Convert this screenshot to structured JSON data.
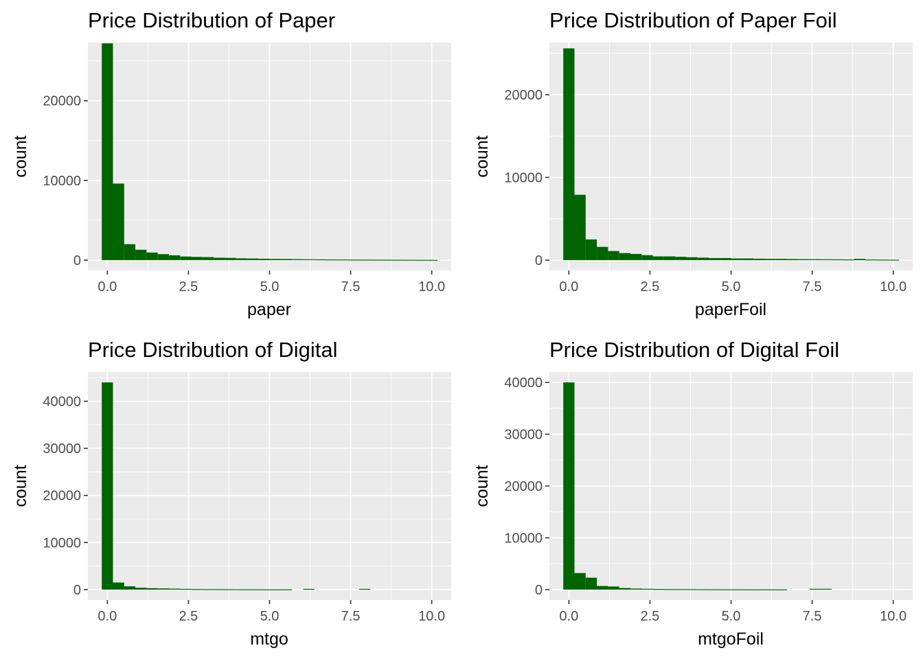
{
  "chart_data": [
    {
      "type": "bar",
      "title": "Price Distribution of Paper",
      "xlabel": "paper",
      "ylabel": "count",
      "xlim": [
        -0.6,
        10.6
      ],
      "ylim": [
        -1300,
        27300
      ],
      "xticks": [
        0.0,
        2.5,
        5.0,
        7.5,
        10.0
      ],
      "xtick_labels": [
        "0.0",
        "2.5",
        "5.0",
        "7.5",
        "10.0"
      ],
      "yticks": [
        0,
        10000,
        20000
      ],
      "ytick_labels": [
        "0",
        "10000",
        "20000"
      ],
      "bin_width": 0.345,
      "bin_centers": [
        0.0,
        0.345,
        0.69,
        1.035,
        1.38,
        1.725,
        2.07,
        2.415,
        2.76,
        3.105,
        3.45,
        3.795,
        4.14,
        4.485,
        4.83,
        5.175,
        5.52,
        5.865,
        6.21,
        6.555,
        6.9,
        7.245,
        7.59,
        7.935,
        8.28,
        8.625,
        8.97,
        9.315,
        9.66,
        10.005
      ],
      "values": [
        27200,
        9600,
        2000,
        1300,
        950,
        750,
        600,
        450,
        400,
        380,
        300,
        280,
        220,
        200,
        170,
        150,
        140,
        120,
        100,
        90,
        80,
        70,
        60,
        55,
        50,
        45,
        40,
        35,
        30,
        25
      ],
      "fill": "#006400",
      "grid": true
    },
    {
      "type": "bar",
      "title": "Price Distribution of Paper Foil",
      "xlabel": "paperFoil",
      "ylabel": "count",
      "xlim": [
        -0.6,
        10.6
      ],
      "ylim": [
        -1250,
        26300
      ],
      "xticks": [
        0.0,
        2.5,
        5.0,
        7.5,
        10.0
      ],
      "xtick_labels": [
        "0.0",
        "2.5",
        "5.0",
        "7.5",
        "10.0"
      ],
      "yticks": [
        0,
        10000,
        20000
      ],
      "ytick_labels": [
        "0",
        "10000",
        "20000"
      ],
      "bin_width": 0.345,
      "bin_centers": [
        0.0,
        0.345,
        0.69,
        1.035,
        1.38,
        1.725,
        2.07,
        2.415,
        2.76,
        3.105,
        3.45,
        3.795,
        4.14,
        4.485,
        4.83,
        5.175,
        5.52,
        5.865,
        6.21,
        6.555,
        6.9,
        7.245,
        7.59,
        7.935,
        8.28,
        8.625,
        8.97,
        9.315,
        9.66,
        10.005
      ],
      "values": [
        25600,
        7900,
        2500,
        1600,
        1100,
        850,
        750,
        600,
        450,
        450,
        400,
        350,
        300,
        250,
        250,
        200,
        200,
        170,
        150,
        150,
        130,
        120,
        110,
        100,
        90,
        80,
        150,
        70,
        60,
        50
      ],
      "fill": "#006400",
      "grid": true
    },
    {
      "type": "bar",
      "title": "Price Distribution of Digital",
      "xlabel": "mtgo",
      "ylabel": "count",
      "xlim": [
        -0.6,
        10.6
      ],
      "ylim": [
        -2200,
        46200
      ],
      "xticks": [
        0.0,
        2.5,
        5.0,
        7.5,
        10.0
      ],
      "xtick_labels": [
        "0.0",
        "2.5",
        "5.0",
        "7.5",
        "10.0"
      ],
      "yticks": [
        0,
        10000,
        20000,
        30000,
        40000
      ],
      "ytick_labels": [
        "0",
        "10000",
        "20000",
        "30000",
        "40000"
      ],
      "bin_width": 0.345,
      "bin_centers": [
        0.0,
        0.345,
        0.69,
        1.035,
        1.38,
        1.725,
        2.07,
        2.415,
        2.76,
        3.105,
        3.45,
        3.795,
        4.14,
        4.485,
        4.83,
        5.175,
        5.52,
        5.865,
        6.21,
        6.555,
        6.9,
        7.245,
        7.59,
        7.935,
        8.28,
        8.625,
        8.97,
        9.315,
        9.66,
        10.005
      ],
      "values": [
        44000,
        1500,
        700,
        400,
        300,
        250,
        200,
        150,
        120,
        100,
        90,
        80,
        70,
        60,
        50,
        50,
        45,
        0,
        150,
        0,
        0,
        0,
        0,
        150,
        0,
        0,
        0,
        0,
        0,
        0
      ],
      "fill": "#006400",
      "grid": true
    },
    {
      "type": "bar",
      "title": "Price Distribution of Digital Foil",
      "xlabel": "mtgoFoil",
      "ylabel": "count",
      "xlim": [
        -0.6,
        10.6
      ],
      "ylim": [
        -2000,
        42000
      ],
      "xticks": [
        0.0,
        2.5,
        5.0,
        7.5,
        10.0
      ],
      "xtick_labels": [
        "0.0",
        "2.5",
        "5.0",
        "7.5",
        "10.0"
      ],
      "yticks": [
        0,
        10000,
        20000,
        30000,
        40000
      ],
      "ytick_labels": [
        "0",
        "10000",
        "20000",
        "30000",
        "40000"
      ],
      "bin_width": 0.345,
      "bin_centers": [
        0.0,
        0.345,
        0.69,
        1.035,
        1.38,
        1.725,
        2.07,
        2.415,
        2.76,
        3.105,
        3.45,
        3.795,
        4.14,
        4.485,
        4.83,
        5.175,
        5.52,
        5.865,
        6.21,
        6.555,
        6.9,
        7.245,
        7.59,
        7.935,
        8.28,
        8.625,
        8.97,
        9.315,
        9.66,
        10.005
      ],
      "values": [
        40000,
        3200,
        2300,
        700,
        600,
        300,
        200,
        150,
        120,
        100,
        90,
        80,
        70,
        60,
        50,
        50,
        45,
        40,
        40,
        35,
        0,
        0,
        150,
        150,
        0,
        0,
        0,
        0,
        0,
        0
      ],
      "fill": "#006400",
      "grid": true
    }
  ]
}
